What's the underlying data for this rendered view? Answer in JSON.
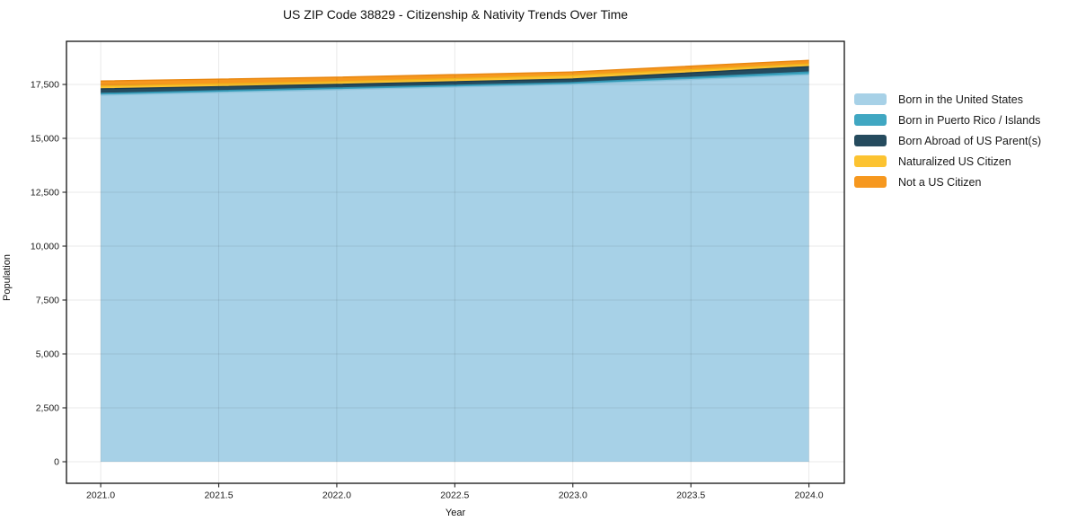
{
  "title": "US ZIP Code 38829 - Citizenship & Nativity Trends Over Time",
  "chart_data": {
    "type": "area",
    "stacked": true,
    "title": "US ZIP Code 38829 - Citizenship & Nativity Trends Over Time",
    "xlabel": "Year",
    "ylabel": "Population",
    "x": [
      2021,
      2022,
      2023,
      2024
    ],
    "series": [
      {
        "name": "Born in the United States",
        "color": "#a7d1e7",
        "line_color": "#8fc3dc",
        "values": [
          17000,
          17250,
          17500,
          17950
        ]
      },
      {
        "name": "Born in Puerto Rico / Islands",
        "color": "#40a7c2",
        "line_color": "#3295b2",
        "values": [
          85,
          85,
          85,
          125
        ]
      },
      {
        "name": "Born Abroad of US Parent(s)",
        "color": "#254b5e",
        "line_color": "#1c3c4e",
        "values": [
          205,
          165,
          165,
          250
        ]
      },
      {
        "name": "Naturalized US Citizen",
        "color": "#fcc331",
        "line_color": "#f0b31c",
        "values": [
          130,
          125,
          165,
          125
        ]
      },
      {
        "name": "Not a US Citizen",
        "color": "#f6981f",
        "line_color": "#e8860f",
        "values": [
          240,
          210,
          165,
          165
        ]
      }
    ],
    "x_ticks": [
      "2021.0",
      "2021.5",
      "2022.0",
      "2022.5",
      "2023.0",
      "2023.5",
      "2024.0"
    ],
    "x_tick_values": [
      2021,
      2021.5,
      2022,
      2022.5,
      2023,
      2023.5,
      2024
    ],
    "y_ticks": [
      "0",
      "2,500",
      "5,000",
      "7,500",
      "10,000",
      "12,500",
      "15,000",
      "17,500"
    ],
    "y_tick_values": [
      0,
      2500,
      5000,
      7500,
      10000,
      12500,
      15000,
      17500
    ],
    "xlim": [
      2020.855,
      2024.15
    ],
    "ylim": [
      -1000,
      19500
    ],
    "grid": true,
    "legend_position": "right",
    "grid_color": "#e9e9e9",
    "spine_color": "#111111",
    "tick_color": "#222222",
    "tick_label_color": "#1a1a1a"
  }
}
